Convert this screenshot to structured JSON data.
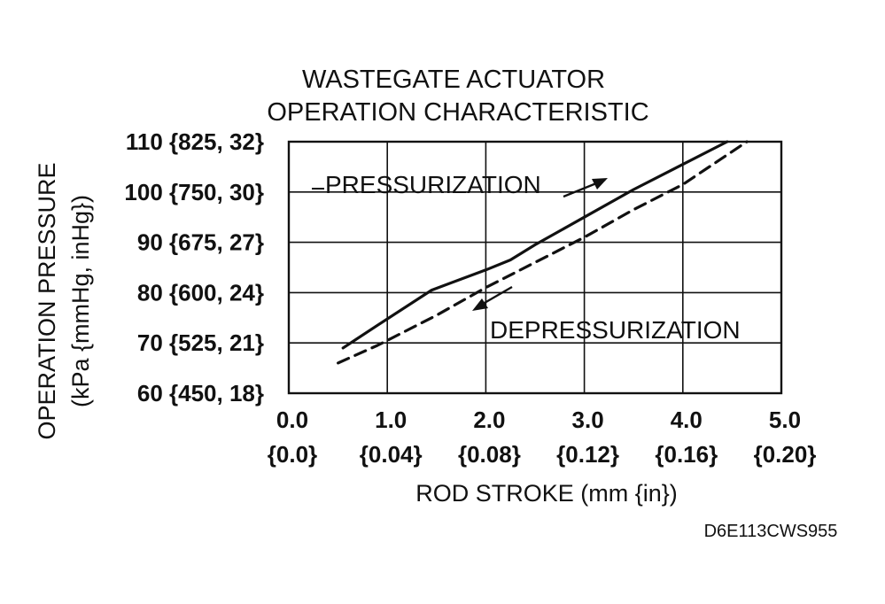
{
  "figure_code": "D6E113CWS955",
  "chart_data": {
    "type": "line",
    "title": [
      "WASTEGATE ACTUATOR",
      "OPERATION CHARACTERISTIC"
    ],
    "xlabel": "ROD STROKE (mm {in})",
    "ylabel": [
      "OPERATION  PRESSURE",
      "(kPa {mmHg, inHg})"
    ],
    "xlim": [
      0,
      5
    ],
    "ylim": [
      60,
      110
    ],
    "grid": true,
    "x_ticks": [
      {
        "value": 0,
        "label": "0.0",
        "sub": "{0.0}"
      },
      {
        "value": 1,
        "label": "1.0",
        "sub": "{0.04}"
      },
      {
        "value": 2,
        "label": "2.0",
        "sub": "{0.08}"
      },
      {
        "value": 3,
        "label": "3.0",
        "sub": "{0.12}"
      },
      {
        "value": 4,
        "label": "4.0",
        "sub": "{0.16}"
      },
      {
        "value": 5,
        "label": "5.0",
        "sub": "{0.20}"
      }
    ],
    "y_ticks": [
      {
        "value": 110,
        "label": "110 {825, 32}"
      },
      {
        "value": 100,
        "label": "100 {750, 30}"
      },
      {
        "value": 90,
        "label": "90 {675, 27}"
      },
      {
        "value": 80,
        "label": "80 {600, 24}"
      },
      {
        "value": 70,
        "label": "70 {525, 21}"
      },
      {
        "value": 60,
        "label": "60 {450, 18}"
      }
    ],
    "series": [
      {
        "name": "PRESSURIZATION",
        "style": "solid",
        "x": [
          0.55,
          0.9,
          1.45,
          2.0,
          2.25,
          2.5,
          3.0,
          3.5,
          4.0,
          4.45
        ],
        "y": [
          69.0,
          73.5,
          80.5,
          84.5,
          86.5,
          89.5,
          95.0,
          100.5,
          105.5,
          110.0
        ]
      },
      {
        "name": "DEPRESSURIZATION",
        "style": "dashed",
        "x": [
          0.5,
          0.9,
          1.5,
          2.0,
          2.5,
          3.0,
          3.5,
          4.0,
          4.65
        ],
        "y": [
          66.0,
          69.5,
          75.5,
          81.0,
          86.0,
          91.0,
          96.5,
          101.5,
          110.0
        ]
      }
    ],
    "annotations": [
      {
        "text": "PRESSURIZATION",
        "series": "PRESSURIZATION",
        "arrow": "up-right",
        "x": 3.2,
        "y": 101
      },
      {
        "text": "DEPRESSURIZATION",
        "series": "DEPRESSURIZATION",
        "arrow": "down-left",
        "x": 2.0,
        "y": 81
      }
    ]
  }
}
